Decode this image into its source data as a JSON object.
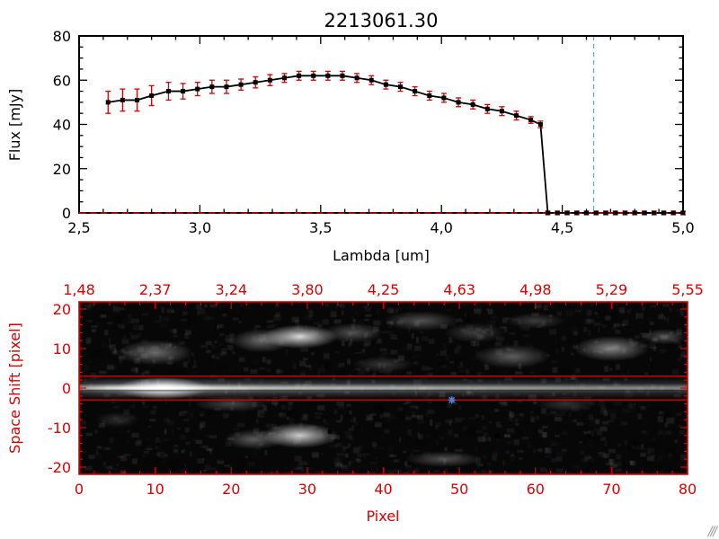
{
  "corner_mark": "///",
  "chart_data": [
    {
      "type": "line",
      "name": "spectrum",
      "title": "2213061.30",
      "xlabel": "Lambda [um]",
      "ylabel": "Flux [mJy]",
      "xlim": [
        2.5,
        5.0
      ],
      "ylim": [
        0,
        80
      ],
      "grid": false,
      "x_ticks": {
        "values": [
          2.5,
          3.0,
          3.5,
          4.0,
          4.5,
          5.0
        ],
        "labels": [
          "2,5",
          "3,0",
          "3,5",
          "4,0",
          "4,5",
          "5,0"
        ]
      },
      "y_ticks": {
        "values": [
          0,
          20,
          40,
          60,
          80
        ],
        "labels": [
          "0",
          "20",
          "40",
          "60",
          "80"
        ]
      },
      "axis_color": "#000000",
      "series": [
        {
          "name": "flux",
          "color": "#000000",
          "marker": "square",
          "error_color": "#d40000",
          "x": [
            2.62,
            2.68,
            2.74,
            2.8,
            2.87,
            2.93,
            2.99,
            3.05,
            3.11,
            3.17,
            3.23,
            3.29,
            3.35,
            3.41,
            3.47,
            3.53,
            3.59,
            3.65,
            3.71,
            3.77,
            3.83,
            3.89,
            3.95,
            4.01,
            4.07,
            4.13,
            4.19,
            4.25,
            4.31,
            4.37,
            4.41,
            4.44,
            4.48,
            4.52,
            4.56,
            4.6,
            4.64,
            4.68,
            4.72,
            4.76,
            4.8,
            4.84,
            4.88,
            4.92,
            4.96,
            5.0
          ],
          "y": [
            50,
            51,
            51,
            53,
            55,
            55,
            56,
            57,
            57,
            58,
            59,
            60,
            61,
            62,
            62,
            62,
            62,
            61,
            60,
            58,
            57,
            55,
            53,
            52,
            50,
            49,
            47,
            46,
            44,
            42,
            40,
            0,
            0,
            0,
            0,
            0,
            0,
            0,
            0,
            0,
            0,
            0,
            0,
            0,
            0,
            0
          ],
          "yerr": [
            5,
            5,
            5,
            4.5,
            4,
            3.5,
            3,
            3,
            3,
            2.5,
            2.5,
            2.5,
            2,
            2,
            2,
            2,
            2,
            2,
            2,
            2,
            2,
            2,
            2,
            2,
            2,
            2,
            2,
            2,
            2,
            1.5,
            1.5,
            0.8,
            0.8,
            0.8,
            0.8,
            0.8,
            0.8,
            0.8,
            0.8,
            0.8,
            0.8,
            0.8,
            0.8,
            0.8,
            0.8,
            0.8
          ]
        }
      ],
      "vline": {
        "x": 4.63,
        "color": "#7a9ab8",
        "style": "dashed"
      },
      "hline": {
        "y": 0,
        "color": "#d40000",
        "style": "dashed"
      }
    },
    {
      "type": "heatmap",
      "name": "spectral-image",
      "xlabel": "Pixel",
      "ylabel": "Space Shift [pixel]",
      "xlim": [
        0,
        80
      ],
      "ylim": [
        -20,
        20
      ],
      "axis_color": "#dd0000",
      "x_ticks": {
        "values": [
          0,
          10,
          20,
          30,
          40,
          50,
          60,
          70,
          80
        ],
        "labels": [
          "0",
          "10",
          "20",
          "30",
          "40",
          "50",
          "60",
          "70",
          "80"
        ]
      },
      "y_ticks": {
        "values": [
          -20,
          -10,
          0,
          10,
          20
        ],
        "labels": [
          "-20",
          "-10",
          "0",
          "10",
          "20"
        ]
      },
      "top_axis_labels": [
        "1,48",
        "2,37",
        "3,24",
        "3,80",
        "4,25",
        "4,63",
        "4,98",
        "5,29",
        "5,55"
      ],
      "top_axis_positions": [
        0,
        10,
        20,
        30,
        40,
        50,
        60,
        70,
        80
      ],
      "aperture_lines": {
        "y": [
          3,
          -3
        ],
        "color": "#dd0000"
      },
      "trace_line": {
        "y": -0.5,
        "color": "#000000"
      },
      "marker": {
        "x": 49,
        "y": -3,
        "color": "#5b7fd4",
        "shape": "asterisk"
      },
      "stripe": {
        "profile": [
          [
            0,
            0.5
          ],
          [
            4,
            0.8
          ],
          [
            9,
            1.0
          ],
          [
            14,
            0.95
          ],
          [
            18,
            0.78
          ],
          [
            24,
            0.65
          ],
          [
            34,
            0.6
          ],
          [
            44,
            0.55
          ],
          [
            54,
            0.5
          ],
          [
            64,
            0.45
          ],
          [
            80,
            0.4
          ]
        ],
        "halfwidth_pixels": 2.5
      },
      "blobs": [
        {
          "x": 11,
          "y": 0,
          "rx": 6,
          "ry": 2.8,
          "a": 1.0
        },
        {
          "x": 10,
          "y": 9,
          "rx": 5,
          "ry": 3.2,
          "a": 0.4
        },
        {
          "x": 29,
          "y": 13,
          "rx": 5,
          "ry": 3.0,
          "a": 0.85
        },
        {
          "x": 24,
          "y": 12,
          "rx": 4,
          "ry": 3.0,
          "a": 0.4
        },
        {
          "x": 36,
          "y": 14,
          "rx": 4,
          "ry": 2.5,
          "a": 0.3
        },
        {
          "x": 45,
          "y": 17,
          "rx": 5,
          "ry": 2.5,
          "a": 0.3
        },
        {
          "x": 57,
          "y": 8,
          "rx": 5,
          "ry": 3.0,
          "a": 0.35
        },
        {
          "x": 52,
          "y": 14,
          "rx": 4,
          "ry": 2.5,
          "a": 0.22
        },
        {
          "x": 70,
          "y": 10,
          "rx": 5,
          "ry": 3.2,
          "a": 0.5
        },
        {
          "x": 77,
          "y": 13,
          "rx": 3,
          "ry": 2.0,
          "a": 0.3
        },
        {
          "x": 29,
          "y": -12,
          "rx": 5,
          "ry": 3.2,
          "a": 0.8
        },
        {
          "x": 23,
          "y": -13,
          "rx": 4,
          "ry": 2.5,
          "a": 0.35
        },
        {
          "x": 20,
          "y": -4,
          "rx": 5,
          "ry": 2.0,
          "a": 0.25
        },
        {
          "x": 48,
          "y": -18,
          "rx": 5,
          "ry": 2.0,
          "a": 0.3
        },
        {
          "x": 64,
          "y": -4,
          "rx": 4,
          "ry": 2.0,
          "a": 0.18
        },
        {
          "x": 5,
          "y": -8,
          "rx": 3,
          "ry": 2.0,
          "a": 0.15
        },
        {
          "x": 40,
          "y": 6,
          "rx": 4,
          "ry": 2.0,
          "a": 0.2
        },
        {
          "x": 60,
          "y": 17,
          "rx": 4,
          "ry": 2.0,
          "a": 0.22
        }
      ],
      "dark_spots": [
        {
          "x": 33,
          "y": -11,
          "a": 0.9
        },
        {
          "x": 55,
          "y": -12,
          "a": 0.8
        },
        {
          "x": 44,
          "y": -20,
          "a": 0.5
        }
      ]
    }
  ]
}
